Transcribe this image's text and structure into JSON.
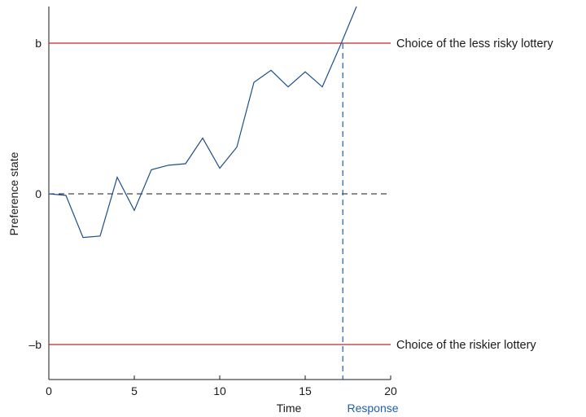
{
  "chart_data": {
    "type": "line",
    "title": "",
    "xlabel": "Time",
    "ylabel": "Preference state",
    "xlim": [
      0,
      20
    ],
    "ylim": [
      -1.22,
      1.25
    ],
    "x_ticks": [
      0,
      5,
      10,
      15,
      20
    ],
    "x_tick_labels": [
      "0",
      "5",
      "10",
      "15",
      "20"
    ],
    "y_ticks": [
      {
        "value": 1,
        "label": "b"
      },
      {
        "value": 0,
        "label": "0"
      },
      {
        "value": -1,
        "label": "–b"
      }
    ],
    "grid": false,
    "series": [
      {
        "color": "#1f4e8c",
        "x": [
          0,
          1,
          2,
          3,
          4,
          5,
          6,
          7,
          8,
          9,
          10,
          11,
          12,
          13,
          14,
          15,
          16,
          17,
          18
        ],
        "y": [
          0.0,
          -0.01,
          -0.29,
          -0.28,
          0.11,
          -0.11,
          0.16,
          0.19,
          0.2,
          0.37,
          0.17,
          0.31,
          0.74,
          0.82,
          0.71,
          0.81,
          0.71,
          0.97,
          1.25
        ]
      }
    ],
    "thresholds": [
      {
        "y": 1,
        "label": "Choice of the less risky lottery",
        "color": "#c0272d"
      },
      {
        "y": -1,
        "label": "Choice of the riskier lottery",
        "color": "#c0272d"
      }
    ],
    "zero_line": {
      "y": 0,
      "style": "dashed",
      "color": "#1a1a1a"
    },
    "response": {
      "x": 17.2,
      "label": "Response",
      "color": "#1f5fa8",
      "style": "dashed"
    }
  }
}
